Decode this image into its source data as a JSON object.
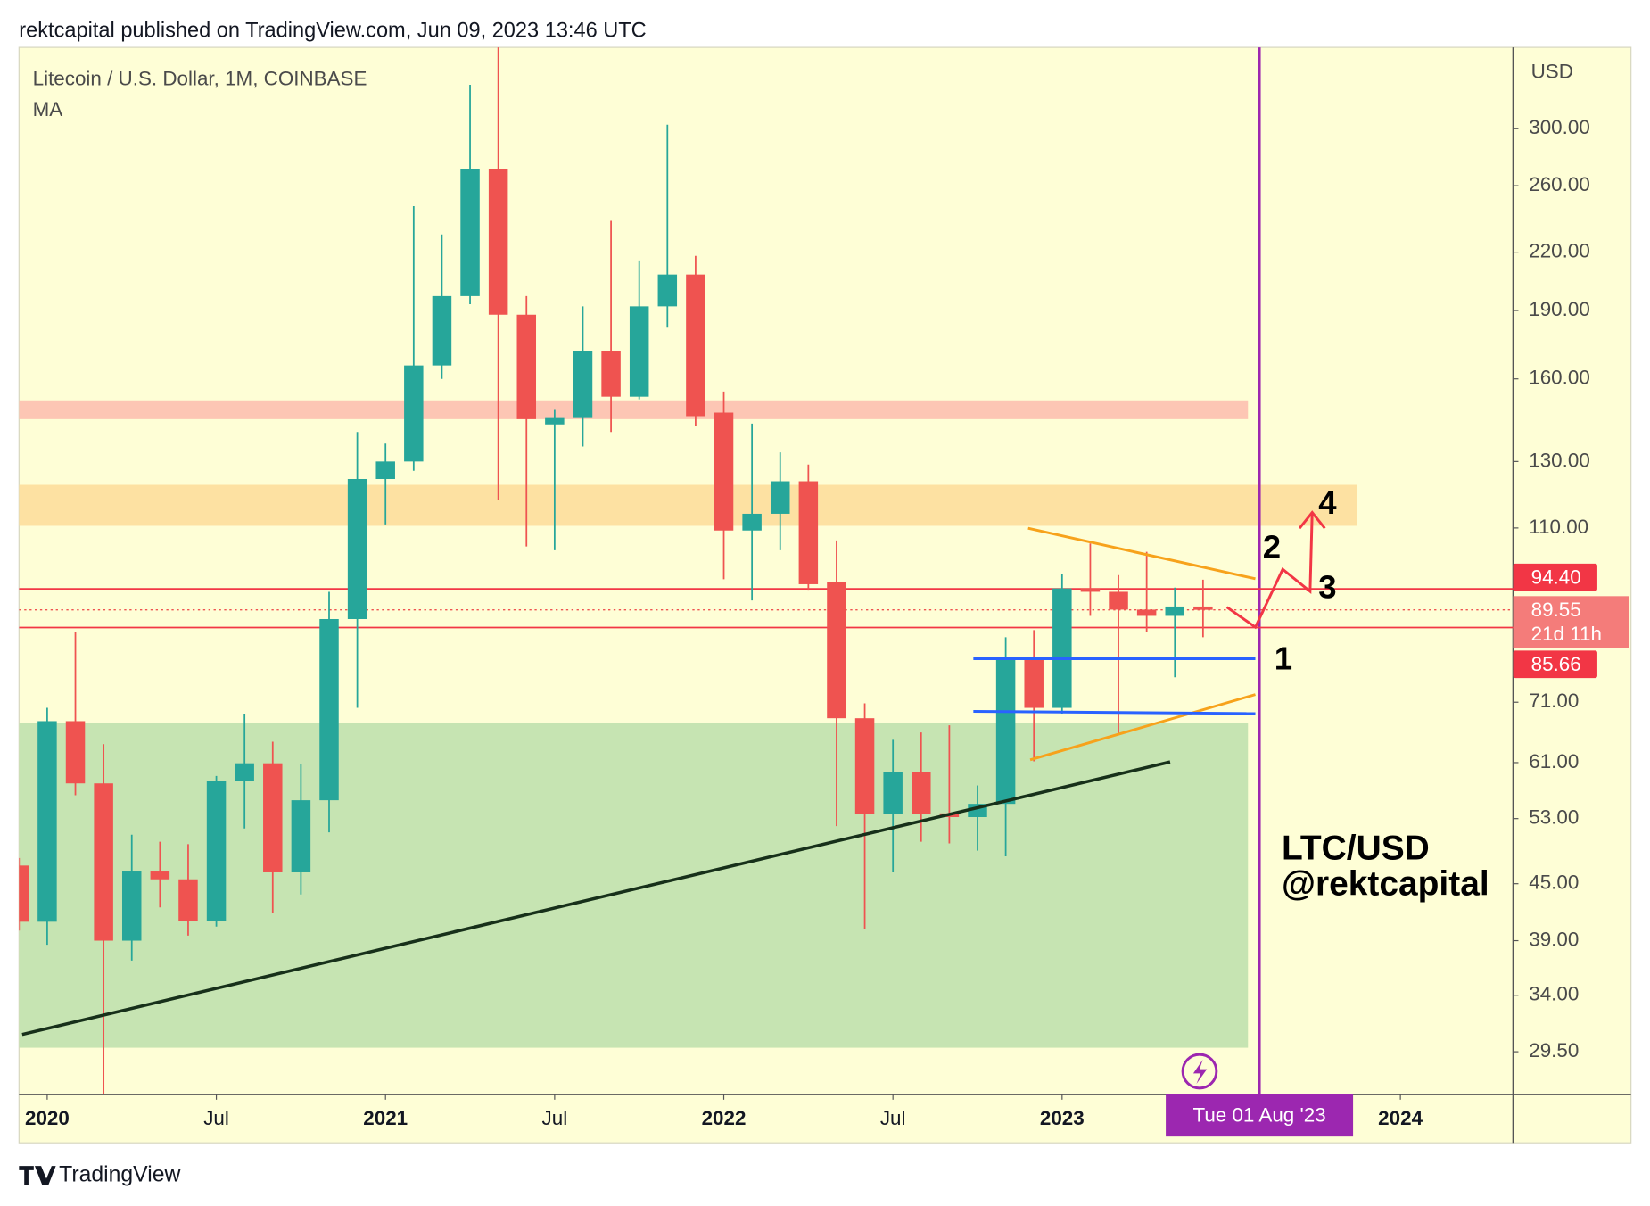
{
  "chart_data": {
    "type": "candlestick",
    "published": "rektcapital published on TradingView.com, Jun 09, 2023 13:46 UTC",
    "title": "Litecoin / U.S. Dollar, 1M, COINBASE",
    "indicator": "MA",
    "y_unit": "USD",
    "watermark": [
      "LTC/USD",
      "@rektcapital"
    ],
    "brand": "TradingView",
    "log_scale": true,
    "up_color": "#26a69a",
    "down_color": "#ef5350",
    "x": [
      "2019-12",
      "2020-01",
      "2020-02",
      "2020-03",
      "2020-04",
      "2020-05",
      "2020-06",
      "2020-07",
      "2020-08",
      "2020-09",
      "2020-10",
      "2020-11",
      "2020-12",
      "2021-01",
      "2021-02",
      "2021-03",
      "2021-04",
      "2021-05",
      "2021-06",
      "2021-07",
      "2021-08",
      "2021-09",
      "2021-10",
      "2021-11",
      "2021-12",
      "2022-01",
      "2022-02",
      "2022-03",
      "2022-04",
      "2022-05",
      "2022-06",
      "2022-07",
      "2022-08",
      "2022-09",
      "2022-10",
      "2022-11",
      "2022-12",
      "2023-01",
      "2023-02",
      "2023-03",
      "2023-04",
      "2023-05",
      "2023-06"
    ],
    "open": [
      47.1,
      40.9,
      67.7,
      57.9,
      39,
      46.4,
      45.5,
      41,
      58.2,
      60.9,
      46.3,
      55.5,
      87.5,
      124.4,
      130,
      165.5,
      197,
      271,
      188,
      142.7,
      145,
      171.7,
      153,
      192,
      208,
      147,
      109.3,
      114,
      123.7,
      96,
      68.2,
      53.6,
      59.6,
      53.7,
      53.2,
      55,
      79.3,
      70,
      94.5,
      93.7,
      89.6,
      88.2,
      90.3
    ],
    "high": [
      48,
      70,
      84.7,
      63.9,
      50.9,
      50,
      49.7,
      59,
      69,
      64.3,
      60.8,
      93.7,
      140,
      136,
      247,
      230,
      335,
      412,
      197,
      148,
      192,
      238,
      215,
      303,
      218,
      155,
      143,
      133,
      129,
      106.6,
      70.8,
      64.6,
      65.8,
      67,
      57.6,
      83.6,
      85.1,
      97.9,
      105.8,
      97.7,
      103.6,
      94.7,
      96.6
    ],
    "low": [
      40,
      38.6,
      56.2,
      23,
      37.1,
      42.4,
      39.5,
      40.4,
      51.7,
      41.8,
      43.8,
      51.2,
      70,
      111,
      127,
      160,
      193,
      118,
      105,
      104,
      135,
      140,
      152,
      182,
      142,
      96.7,
      91.7,
      104,
      94.2,
      52,
      40.2,
      46.3,
      50,
      49.8,
      48.9,
      48.2,
      61.2,
      69,
      88.2,
      65.4,
      84.7,
      75.6,
      83.6
    ],
    "close": [
      40.9,
      67.7,
      57.9,
      39,
      46.4,
      45.5,
      41,
      58.2,
      60.9,
      46.3,
      55.5,
      87.5,
      124.4,
      130,
      165.5,
      197,
      271,
      188,
      144.6,
      145,
      171.7,
      153,
      192,
      208,
      145.7,
      109.3,
      114,
      123.7,
      95.5,
      68.2,
      53.6,
      59.6,
      53.6,
      53.2,
      55,
      79.3,
      70,
      94.5,
      93.7,
      89.6,
      88.2,
      90.3,
      89.55
    ],
    "xlim": [
      "2019-12",
      "2024-05"
    ],
    "xticks": [
      {
        "value": "2020-01",
        "label": "2020"
      },
      {
        "value": "2020-07",
        "label": "Jul"
      },
      {
        "value": "2021-01",
        "label": "2021"
      },
      {
        "value": "2021-07",
        "label": "Jul"
      },
      {
        "value": "2022-01",
        "label": "2022"
      },
      {
        "value": "2022-07",
        "label": "Jul"
      },
      {
        "value": "2023-01",
        "label": "2023"
      },
      {
        "value": "2024-01",
        "label": "2024"
      }
    ],
    "ylim": [
      26.5,
      368
    ],
    "yticks": [
      {
        "value": 300,
        "label": "300.00"
      },
      {
        "value": 260,
        "label": "260.00"
      },
      {
        "value": 220,
        "label": "220.00"
      },
      {
        "value": 190,
        "label": "190.00"
      },
      {
        "value": 160,
        "label": "160.00"
      },
      {
        "value": 130,
        "label": "130.00"
      },
      {
        "value": 110,
        "label": "110.00"
      },
      {
        "value": 71,
        "label": "71.00"
      },
      {
        "value": 61,
        "label": "61.00"
      },
      {
        "value": 53,
        "label": "53.00"
      },
      {
        "value": 45,
        "label": "45.00"
      },
      {
        "value": 39,
        "label": "39.00"
      },
      {
        "value": 34,
        "label": "34.00"
      },
      {
        "value": 29.5,
        "label": "29.50"
      }
    ],
    "zones": [
      {
        "from": 144.6,
        "to": 151.6,
        "color": "#fdc6b4"
      },
      {
        "from": 110.6,
        "to": 122.6,
        "color": "#fde1a2"
      },
      {
        "from": 29.8,
        "to": 67.4,
        "color": "#c6e4b2"
      }
    ],
    "levels": [
      {
        "value": 94.4,
        "label": "94.40"
      },
      {
        "value": 85.66,
        "label": "85.66"
      }
    ],
    "last_price": {
      "value": 89.55,
      "label": "89.55"
    },
    "countdown": "21d 11h",
    "crosshair": {
      "x": "2023-08",
      "label": "Tue 01 Aug '23"
    },
    "annotations": [
      "1",
      "2",
      "3",
      "4"
    ]
  }
}
